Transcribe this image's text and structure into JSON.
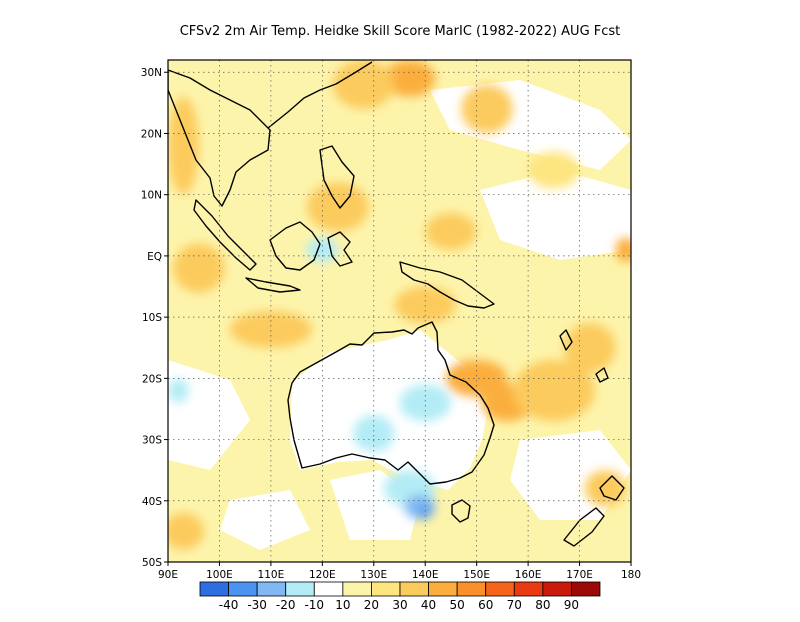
{
  "title": "CFSv2  2m Air Temp. Heidke Skill Score MarIC (1982-2022) AUG Fcst",
  "map": {
    "lon_range": [
      90,
      180
    ],
    "lat_range": [
      -50,
      32
    ],
    "x_ticks": [
      {
        "lon": 90,
        "label": "90E"
      },
      {
        "lon": 100,
        "label": "100E"
      },
      {
        "lon": 110,
        "label": "110E"
      },
      {
        "lon": 120,
        "label": "120E"
      },
      {
        "lon": 130,
        "label": "130E"
      },
      {
        "lon": 140,
        "label": "140E"
      },
      {
        "lon": 150,
        "label": "150E"
      },
      {
        "lon": 160,
        "label": "160E"
      },
      {
        "lon": 170,
        "label": "170E"
      },
      {
        "lon": 180,
        "label": "180"
      }
    ],
    "y_ticks": [
      {
        "lat": 30,
        "label": "30N"
      },
      {
        "lat": 20,
        "label": "20N"
      },
      {
        "lat": 10,
        "label": "10N"
      },
      {
        "lat": 0,
        "label": "EQ"
      },
      {
        "lat": -10,
        "label": "10S"
      },
      {
        "lat": -20,
        "label": "20S"
      },
      {
        "lat": -30,
        "label": "30S"
      },
      {
        "lat": -40,
        "label": "40S"
      },
      {
        "lat": -50,
        "label": "50S"
      }
    ],
    "grid": "dotted",
    "skill_regions": [
      {
        "level": 40,
        "lon": 137,
        "lat": 29,
        "rx": 5,
        "ry": 3
      },
      {
        "level": 30,
        "lon": 128,
        "lat": 28,
        "rx": 6,
        "ry": 4
      },
      {
        "level": 30,
        "lon": 93,
        "lat": 18,
        "rx": 3,
        "ry": 8
      },
      {
        "level": 30,
        "lon": 96,
        "lat": -2,
        "rx": 5,
        "ry": 4
      },
      {
        "level": 30,
        "lon": 123,
        "lat": 8,
        "rx": 6,
        "ry": 4
      },
      {
        "level": 30,
        "lon": 145,
        "lat": 4,
        "rx": 5,
        "ry": 3
      },
      {
        "level": 30,
        "lon": 152,
        "lat": 24,
        "rx": 5,
        "ry": 4
      },
      {
        "level": 40,
        "lon": 150,
        "lat": -20,
        "rx": 6,
        "ry": 3
      },
      {
        "level": 40,
        "lon": 156,
        "lat": -24,
        "rx": 5,
        "ry": 3
      },
      {
        "level": 30,
        "lon": 165,
        "lat": -22,
        "rx": 8,
        "ry": 5
      },
      {
        "level": 30,
        "lon": 172,
        "lat": -15,
        "rx": 5,
        "ry": 4
      },
      {
        "level": 40,
        "lon": 179,
        "lat": 1,
        "rx": 2,
        "ry": 2
      },
      {
        "level": 30,
        "lon": 175,
        "lat": -38,
        "rx": 4,
        "ry": 3
      },
      {
        "level": 30,
        "lon": 93,
        "lat": -45,
        "rx": 4,
        "ry": 3
      },
      {
        "level": 30,
        "lon": 110,
        "lat": -12,
        "rx": 8,
        "ry": 3
      },
      {
        "level": 30,
        "lon": 140,
        "lat": -8,
        "rx": 6,
        "ry": 3
      },
      {
        "level": 20,
        "lon": 165,
        "lat": 14,
        "rx": 5,
        "ry": 3
      },
      {
        "level": -10,
        "lon": 130,
        "lat": -29,
        "rx": 4,
        "ry": 3
      },
      {
        "level": -10,
        "lon": 140,
        "lat": -24,
        "rx": 5,
        "ry": 3
      },
      {
        "level": -10,
        "lon": 137,
        "lat": -38,
        "rx": 5,
        "ry": 3
      },
      {
        "level": -10,
        "lon": 120,
        "lat": 1,
        "rx": 3,
        "ry": 2
      },
      {
        "level": -10,
        "lon": 92,
        "lat": -22,
        "rx": 2,
        "ry": 2
      },
      {
        "level": -20,
        "lon": 139,
        "lat": -41,
        "rx": 3,
        "ry": 2
      },
      {
        "level": -30,
        "lon": 140,
        "lat": -42,
        "rx": 1,
        "ry": 1
      }
    ]
  },
  "colorbar": {
    "colors": [
      "#2d6fe0",
      "#4a93ee",
      "#7fb8f3",
      "#b3ecf6",
      "#ffffff",
      "#fdf4ab",
      "#fde57f",
      "#fccb5d",
      "#fbae3e",
      "#f9902c",
      "#f5641a",
      "#e93a12",
      "#c91a0c",
      "#9b0a06"
    ],
    "labels": [
      "-40",
      "-30",
      "-20",
      "-10",
      "10",
      "20",
      "30",
      "40",
      "50",
      "60",
      "70",
      "80",
      "90"
    ]
  }
}
